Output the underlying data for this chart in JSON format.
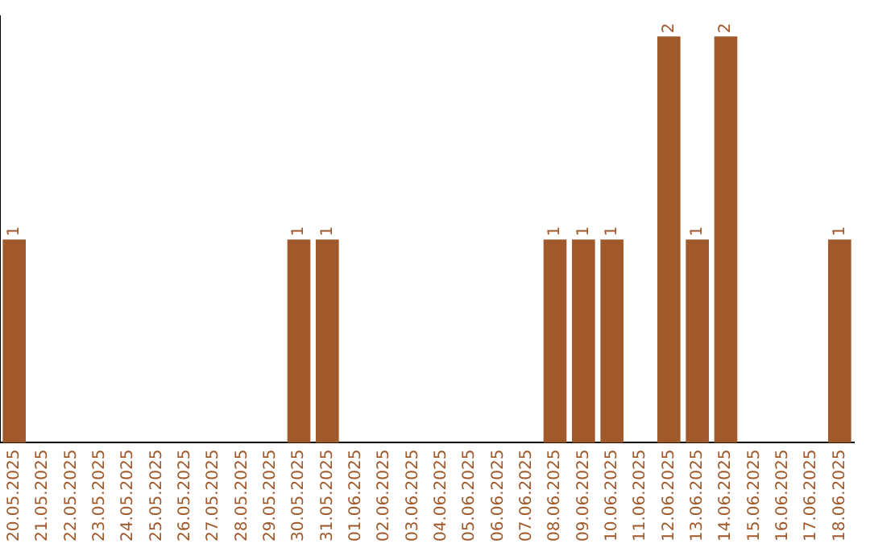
{
  "chart_data": {
    "type": "bar",
    "categories": [
      "20.05.2025",
      "21.05.2025",
      "22.05.2025",
      "23.05.2025",
      "24.05.2025",
      "25.05.2025",
      "26.05.2025",
      "27.05.2025",
      "28.05.2025",
      "29.05.2025",
      "30.05.2025",
      "31.05.2025",
      "01.06.2025",
      "02.06.2025",
      "03.06.2025",
      "04.06.2025",
      "05.06.2025",
      "06.06.2025",
      "07.06.2025",
      "08.06.2025",
      "09.06.2025",
      "10.06.2025",
      "11.06.2025",
      "12.06.2025",
      "13.06.2025",
      "14.06.2025",
      "15.06.2025",
      "16.06.2025",
      "17.06.2025",
      "18.06.2025"
    ],
    "values": [
      1,
      0,
      0,
      0,
      0,
      0,
      0,
      0,
      0,
      0,
      1,
      1,
      0,
      0,
      0,
      0,
      0,
      0,
      0,
      1,
      1,
      1,
      0,
      2,
      1,
      2,
      0,
      0,
      0,
      1
    ],
    "value_labels": [
      "1",
      null,
      null,
      null,
      null,
      null,
      null,
      null,
      null,
      null,
      "1",
      "1",
      null,
      null,
      null,
      null,
      null,
      null,
      null,
      "1",
      "1",
      "1",
      null,
      "2",
      "1",
      "2",
      null,
      null,
      null,
      "1"
    ],
    "color": "#a0592a",
    "ylim": [
      0,
      2.1
    ],
    "tick_labels": "x",
    "grid": false,
    "legend": false
  }
}
